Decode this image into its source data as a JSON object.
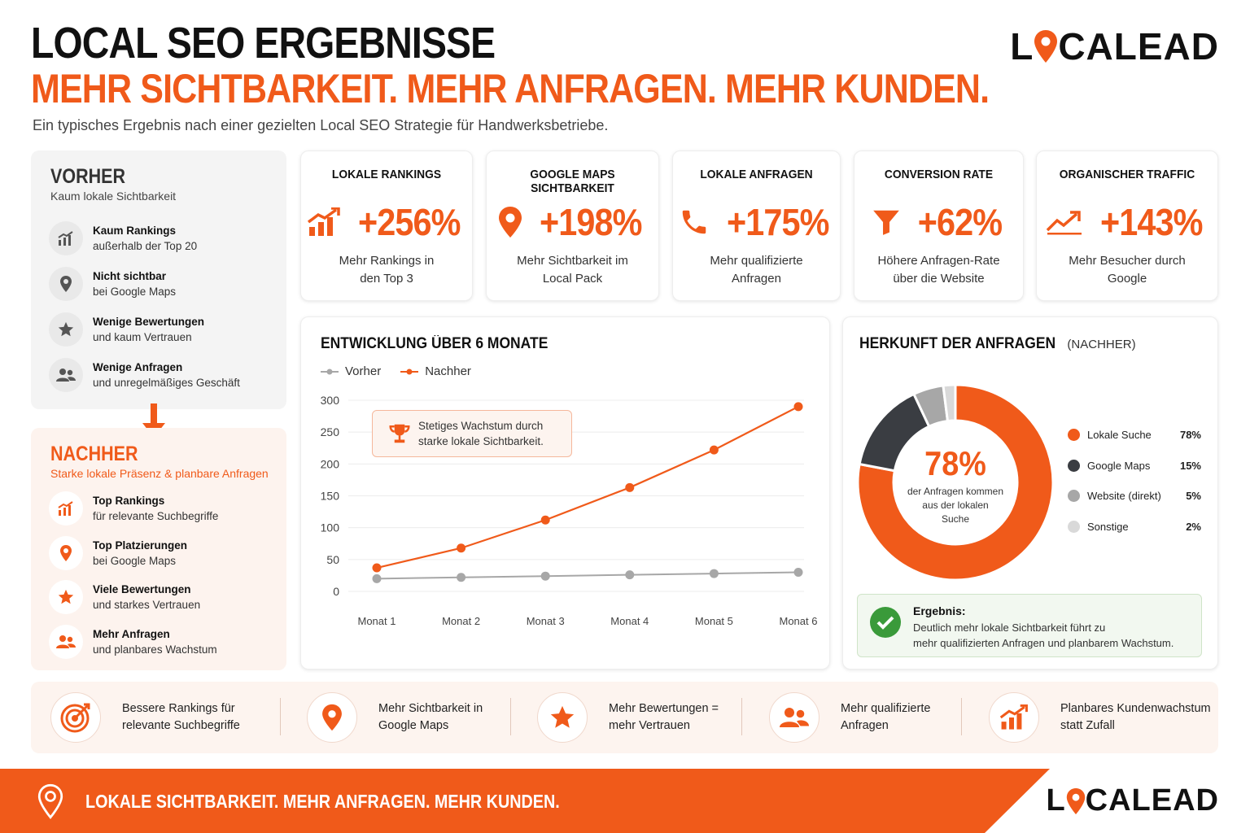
{
  "header": {
    "title": "LOCAL SEO ERGEBNISSE",
    "subtitle": "MEHR SICHTBARKEIT. MEHR ANFRAGEN. MEHR KUNDEN.",
    "intro": "Ein typisches Ergebnis nach einer gezielten Local SEO Strategie für Handwerksbetriebe.",
    "logo": "LOCALEAD",
    "logo_left": "L",
    "logo_right": "CALEAD"
  },
  "colors": {
    "accent": "#f05a1a",
    "dark": "#3a3d42",
    "grey": "#a7a7a7",
    "light_grey": "#d9d9d9",
    "success": "#3a9a3a"
  },
  "vorher": {
    "heading": "VORHER",
    "subheading": "Kaum lokale Sichtbarkeit",
    "items": [
      {
        "icon": "chart-icon",
        "title": "Kaum Rankings",
        "text": "außerhalb der Top 20"
      },
      {
        "icon": "map-pin-icon",
        "title": "Nicht sichtbar",
        "text": "bei Google Maps"
      },
      {
        "icon": "star-icon",
        "title": "Wenige Bewertungen",
        "text": "und kaum Vertrauen"
      },
      {
        "icon": "users-icon",
        "title": "Wenige Anfragen",
        "text": "und unregelmäßiges Geschäft"
      }
    ]
  },
  "nachher": {
    "heading": "NACHHER",
    "subheading": "Starke lokale Präsenz & planbare Anfragen",
    "items": [
      {
        "icon": "chart-icon",
        "title": "Top Rankings",
        "text": "für relevante Suchbegriffe"
      },
      {
        "icon": "map-pin-icon",
        "title": "Top Platzierungen",
        "text": "bei Google Maps"
      },
      {
        "icon": "star-icon",
        "title": "Viele Bewertungen",
        "text": "und starkes Vertrauen"
      },
      {
        "icon": "users-icon",
        "title": "Mehr Anfragen",
        "text": "und planbares Wachstum"
      }
    ]
  },
  "kpis": [
    {
      "label": "LOKALE RANKINGS",
      "value": "+256%",
      "desc1": "Mehr Rankings in",
      "desc2": "den Top 3",
      "icon": "bar-chart-up-icon"
    },
    {
      "label": "GOOGLE MAPS SICHTBARKEIT",
      "value": "+198%",
      "desc1": "Mehr Sichtbarkeit im",
      "desc2": "Local Pack",
      "icon": "map-pin-icon"
    },
    {
      "label": "LOKALE ANFRAGEN",
      "value": "+175%",
      "desc1": "Mehr qualifizierte",
      "desc2": "Anfragen",
      "icon": "phone-icon"
    },
    {
      "label": "CONVERSION RATE",
      "value": "+62%",
      "desc1": "Höhere Anfragen-Rate",
      "desc2": "über die Website",
      "icon": "funnel-icon"
    },
    {
      "label": "ORGANISCHER TRAFFIC",
      "value": "+143%",
      "desc1": "Mehr Besucher durch",
      "desc2": "Google",
      "icon": "trend-up-icon"
    }
  ],
  "line_chart": {
    "title": "ENTWICKLUNG ÜBER 6 MONATE",
    "callout_1": "Stetiges Wachstum durch",
    "callout_2": "starke lokale Sichtbarkeit."
  },
  "donut_chart": {
    "title": "HERKUNFT DER ANFRAGEN",
    "title_suffix": "(NACHHER)",
    "center_value": "78%",
    "center_caption_1": "der Anfragen kommen",
    "center_caption_2": "aus der lokalen",
    "center_caption_3": "Suche",
    "result_heading": "Ergebnis:",
    "result_text_1": "Deutlich mehr lokale Sichtbarkeit führt zu",
    "result_text_2": "mehr qualifizierten Anfragen und planbarem Wachstum."
  },
  "benefits": [
    {
      "icon": "target-icon",
      "line1": "Bessere Rankings für",
      "line2": "relevante Suchbegriffe"
    },
    {
      "icon": "map-pin-icon",
      "line1": "Mehr Sichtbarkeit in",
      "line2": "Google Maps"
    },
    {
      "icon": "star-icon",
      "line1": "Mehr Bewertungen =",
      "line2": "mehr Vertrauen"
    },
    {
      "icon": "users-icon",
      "line1": "Mehr qualifizierte",
      "line2": "Anfragen"
    },
    {
      "icon": "bar-chart-up-icon",
      "line1": "Planbares Kundenwachstum",
      "line2": "statt Zufall"
    }
  ],
  "footer": {
    "slogan": "LOKALE SICHTBARKEIT. MEHR ANFRAGEN. MEHR KUNDEN."
  },
  "chart_data": [
    {
      "type": "line",
      "title": "ENTWICKLUNG ÜBER 6 MONATE",
      "categories": [
        "Monat 1",
        "Monat 2",
        "Monat 3",
        "Monat 4",
        "Monat 5",
        "Monat 6"
      ],
      "series": [
        {
          "name": "Vorher",
          "color": "#a7a7a7",
          "values": [
            20,
            22,
            24,
            26,
            28,
            30
          ]
        },
        {
          "name": "Nachher",
          "color": "#f05a1a",
          "values": [
            37,
            68,
            112,
            163,
            222,
            290
          ]
        }
      ],
      "ylim": [
        0,
        300
      ],
      "yticks": [
        0,
        50,
        100,
        150,
        200,
        250,
        300
      ],
      "grid": true,
      "legend": "top-left"
    },
    {
      "type": "pie",
      "title": "HERKUNFT DER ANFRAGEN (NACHHER)",
      "slices": [
        {
          "label": "Lokale Suche",
          "value": 78,
          "display": "78%",
          "color": "#f05a1a"
        },
        {
          "label": "Google Maps",
          "value": 15,
          "display": "15%",
          "color": "#3a3d42"
        },
        {
          "label": "Website (direkt)",
          "value": 5,
          "display": "5%",
          "color": "#a7a7a7"
        },
        {
          "label": "Sonstige",
          "value": 2,
          "display": "2%",
          "color": "#d9d9d9"
        }
      ],
      "legend": "right"
    }
  ]
}
